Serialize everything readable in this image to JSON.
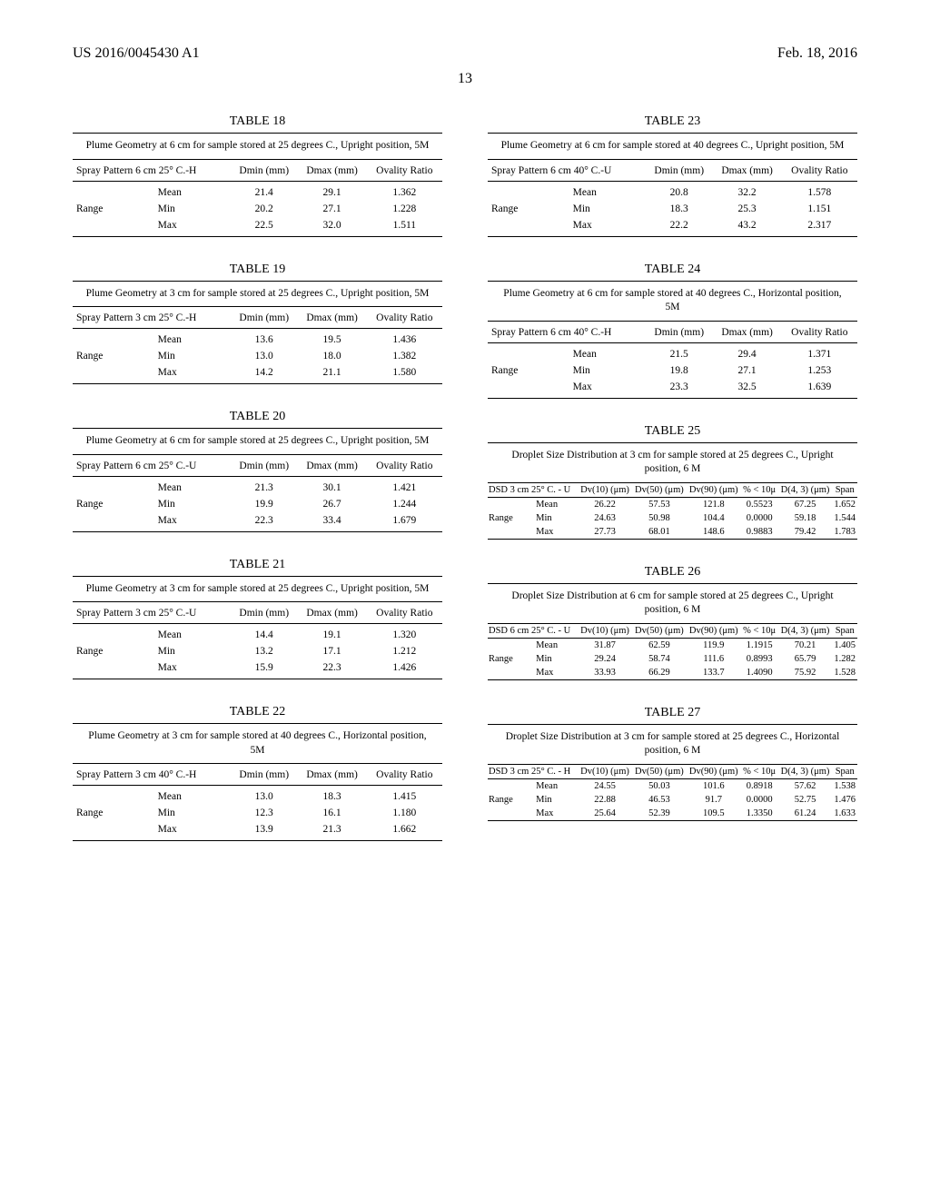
{
  "header": {
    "left": "US 2016/0045430 A1",
    "right": "Feb. 18, 2016"
  },
  "page_number": "13",
  "tables": {
    "t18": {
      "title": "TABLE 18",
      "caption": "Plume Geometry at 6 cm for sample stored at 25 degrees C., Upright position, 5M",
      "col0_header": "Spray Pattern 6 cm 25° C.-H",
      "cols": [
        "Dmin (mm)",
        "Dmax (mm)",
        "Ovality Ratio"
      ],
      "rows": [
        {
          "lbl0": "",
          "lbl1": "Mean",
          "v": [
            "21.4",
            "29.1",
            "1.362"
          ]
        },
        {
          "lbl0": "Range",
          "lbl1": "Min",
          "v": [
            "20.2",
            "27.1",
            "1.228"
          ]
        },
        {
          "lbl0": "",
          "lbl1": "Max",
          "v": [
            "22.5",
            "32.0",
            "1.511"
          ]
        }
      ]
    },
    "t19": {
      "title": "TABLE 19",
      "caption": "Plume Geometry at 3 cm for sample stored at 25 degrees C., Upright position, 5M",
      "col0_header": "Spray Pattern 3 cm 25° C.-H",
      "cols": [
        "Dmin (mm)",
        "Dmax (mm)",
        "Ovality Ratio"
      ],
      "rows": [
        {
          "lbl0": "",
          "lbl1": "Mean",
          "v": [
            "13.6",
            "19.5",
            "1.436"
          ]
        },
        {
          "lbl0": "Range",
          "lbl1": "Min",
          "v": [
            "13.0",
            "18.0",
            "1.382"
          ]
        },
        {
          "lbl0": "",
          "lbl1": "Max",
          "v": [
            "14.2",
            "21.1",
            "1.580"
          ]
        }
      ]
    },
    "t20": {
      "title": "TABLE 20",
      "caption": "Plume Geometry at 6 cm for sample stored at 25 degrees C., Upright position, 5M",
      "col0_header": "Spray Pattern 6 cm 25° C.-U",
      "cols": [
        "Dmin (mm)",
        "Dmax (mm)",
        "Ovality Ratio"
      ],
      "rows": [
        {
          "lbl0": "",
          "lbl1": "Mean",
          "v": [
            "21.3",
            "30.1",
            "1.421"
          ]
        },
        {
          "lbl0": "Range",
          "lbl1": "Min",
          "v": [
            "19.9",
            "26.7",
            "1.244"
          ]
        },
        {
          "lbl0": "",
          "lbl1": "Max",
          "v": [
            "22.3",
            "33.4",
            "1.679"
          ]
        }
      ]
    },
    "t21": {
      "title": "TABLE 21",
      "caption": "Plume Geometry at 3 cm for sample stored at 25 degrees C., Upright position, 5M",
      "col0_header": "Spray Pattern 3 cm 25° C.-U",
      "cols": [
        "Dmin (mm)",
        "Dmax (mm)",
        "Ovality Ratio"
      ],
      "rows": [
        {
          "lbl0": "",
          "lbl1": "Mean",
          "v": [
            "14.4",
            "19.1",
            "1.320"
          ]
        },
        {
          "lbl0": "Range",
          "lbl1": "Min",
          "v": [
            "13.2",
            "17.1",
            "1.212"
          ]
        },
        {
          "lbl0": "",
          "lbl1": "Max",
          "v": [
            "15.9",
            "22.3",
            "1.426"
          ]
        }
      ]
    },
    "t22": {
      "title": "TABLE 22",
      "caption": "Plume Geometry at 3 cm for sample stored at 40 degrees C., Horizontal position, 5M",
      "col0_header": "Spray Pattern 3 cm 40° C.-H",
      "cols": [
        "Dmin (mm)",
        "Dmax (mm)",
        "Ovality Ratio"
      ],
      "rows": [
        {
          "lbl0": "",
          "lbl1": "Mean",
          "v": [
            "13.0",
            "18.3",
            "1.415"
          ]
        },
        {
          "lbl0": "Range",
          "lbl1": "Min",
          "v": [
            "12.3",
            "16.1",
            "1.180"
          ]
        },
        {
          "lbl0": "",
          "lbl1": "Max",
          "v": [
            "13.9",
            "21.3",
            "1.662"
          ]
        }
      ]
    },
    "t23": {
      "title": "TABLE 23",
      "caption": "Plume Geometry at 6 cm for sample stored at 40 degrees C., Upright position, 5M",
      "col0_header": "Spray Pattern 6 cm 40° C.-U",
      "cols": [
        "Dmin (mm)",
        "Dmax (mm)",
        "Ovality Ratio"
      ],
      "rows": [
        {
          "lbl0": "",
          "lbl1": "Mean",
          "v": [
            "20.8",
            "32.2",
            "1.578"
          ]
        },
        {
          "lbl0": "Range",
          "lbl1": "Min",
          "v": [
            "18.3",
            "25.3",
            "1.151"
          ]
        },
        {
          "lbl0": "",
          "lbl1": "Max",
          "v": [
            "22.2",
            "43.2",
            "2.317"
          ]
        }
      ]
    },
    "t24": {
      "title": "TABLE 24",
      "caption": "Plume Geometry at 6 cm for sample stored at 40 degrees C., Horizontal position, 5M",
      "col0_header": "Spray Pattern 6 cm 40° C.-H",
      "cols": [
        "Dmin (mm)",
        "Dmax (mm)",
        "Ovality Ratio"
      ],
      "rows": [
        {
          "lbl0": "",
          "lbl1": "Mean",
          "v": [
            "21.5",
            "29.4",
            "1.371"
          ]
        },
        {
          "lbl0": "Range",
          "lbl1": "Min",
          "v": [
            "19.8",
            "27.1",
            "1.253"
          ]
        },
        {
          "lbl0": "",
          "lbl1": "Max",
          "v": [
            "23.3",
            "32.5",
            "1.639"
          ]
        }
      ]
    },
    "t25": {
      "title": "TABLE 25",
      "caption": "Droplet Size Distribution at 3 cm for sample stored at 25 degrees C., Upright position, 6 M",
      "col0_header": "DSD 3 cm 25° C. - U",
      "cols": [
        "Dv(10) (μm)",
        "Dv(50) (μm)",
        "Dv(90) (μm)",
        "% < 10μ",
        "D(4, 3) (μm)",
        "Span"
      ],
      "rows": [
        {
          "lbl0": "",
          "lbl1": "Mean",
          "v": [
            "26.22",
            "57.53",
            "121.8",
            "0.5523",
            "67.25",
            "1.652"
          ]
        },
        {
          "lbl0": "Range",
          "lbl1": "Min",
          "v": [
            "24.63",
            "50.98",
            "104.4",
            "0.0000",
            "59.18",
            "1.544"
          ]
        },
        {
          "lbl0": "",
          "lbl1": "Max",
          "v": [
            "27.73",
            "68.01",
            "148.6",
            "0.9883",
            "79.42",
            "1.783"
          ]
        }
      ]
    },
    "t26": {
      "title": "TABLE 26",
      "caption": "Droplet Size Distribution at 6 cm for sample stored at 25 degrees C., Upright position, 6 M",
      "col0_header": "DSD 6 cm 25° C. - U",
      "cols": [
        "Dv(10) (μm)",
        "Dv(50) (μm)",
        "Dv(90) (μm)",
        "% < 10μ",
        "D(4, 3) (μm)",
        "Span"
      ],
      "rows": [
        {
          "lbl0": "",
          "lbl1": "Mean",
          "v": [
            "31.87",
            "62.59",
            "119.9",
            "1.1915",
            "70.21",
            "1.405"
          ]
        },
        {
          "lbl0": "Range",
          "lbl1": "Min",
          "v": [
            "29.24",
            "58.74",
            "111.6",
            "0.8993",
            "65.79",
            "1.282"
          ]
        },
        {
          "lbl0": "",
          "lbl1": "Max",
          "v": [
            "33.93",
            "66.29",
            "133.7",
            "1.4090",
            "75.92",
            "1.528"
          ]
        }
      ]
    },
    "t27": {
      "title": "TABLE 27",
      "caption": "Droplet Size Distribution at 3 cm for sample stored at 25 degrees C., Horizontal position, 6 M",
      "col0_header": "DSD 3 cm 25° C. - H",
      "cols": [
        "Dv(10) (μm)",
        "Dv(50) (μm)",
        "Dv(90) (μm)",
        "% < 10μ",
        "D(4, 3) (μm)",
        "Span"
      ],
      "rows": [
        {
          "lbl0": "",
          "lbl1": "Mean",
          "v": [
            "24.55",
            "50.03",
            "101.6",
            "0.8918",
            "57.62",
            "1.538"
          ]
        },
        {
          "lbl0": "Range",
          "lbl1": "Min",
          "v": [
            "22.88",
            "46.53",
            "91.7",
            "0.0000",
            "52.75",
            "1.476"
          ]
        },
        {
          "lbl0": "",
          "lbl1": "Max",
          "v": [
            "25.64",
            "52.39",
            "109.5",
            "1.3350",
            "61.24",
            "1.633"
          ]
        }
      ]
    }
  },
  "layout": {
    "left_col": [
      "t18",
      "t19",
      "t20",
      "t21",
      "t22"
    ],
    "right_col": [
      "t23",
      "t24",
      "t25",
      "t26",
      "t27"
    ],
    "narrow": [
      "t25",
      "t26",
      "t27"
    ]
  }
}
